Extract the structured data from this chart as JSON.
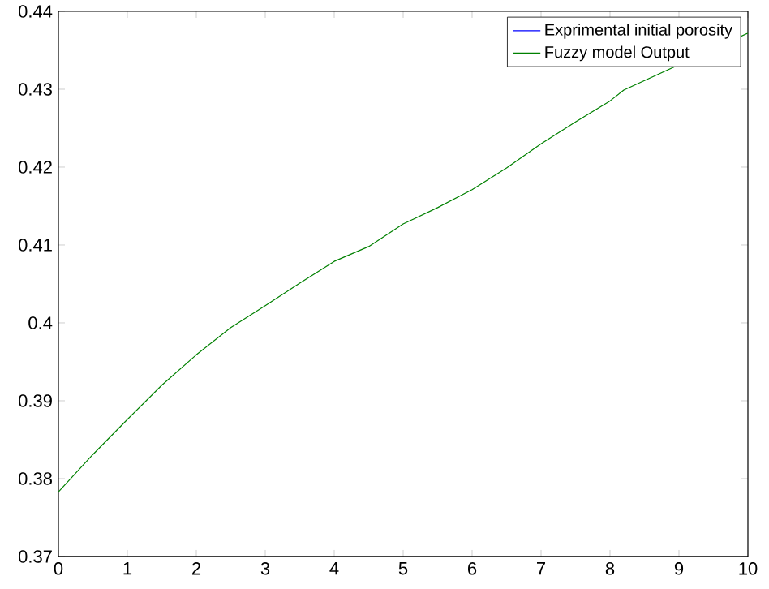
{
  "chart_data": {
    "type": "line",
    "x": [
      0,
      0.5,
      1,
      1.5,
      2,
      2.5,
      3,
      3.5,
      4,
      4.5,
      5,
      5.5,
      6,
      6.5,
      7,
      7.5,
      8,
      8.2,
      10
    ],
    "series": [
      {
        "name": "Exprimental initial porosity",
        "color": "#0000ff",
        "values": [
          null,
          null,
          null,
          null,
          null,
          null,
          null,
          null,
          null,
          null,
          null,
          null,
          null,
          null,
          null,
          null,
          null,
          null,
          null
        ]
      },
      {
        "name": "Fuzzy model Output",
        "color": "#008000",
        "values": [
          0.3783,
          0.3831,
          0.3876,
          0.392,
          0.3959,
          0.3994,
          0.4022,
          0.4051,
          0.4079,
          0.4098,
          0.4127,
          0.4148,
          0.4171,
          0.4199,
          0.423,
          0.4258,
          0.4285,
          0.4299,
          0.4372
        ]
      }
    ],
    "xlim": [
      0,
      10
    ],
    "ylim": [
      0.37,
      0.44
    ],
    "xticks": [
      0,
      1,
      2,
      3,
      4,
      5,
      6,
      7,
      8,
      9,
      10
    ],
    "yticks": [
      0.37,
      0.38,
      0.39,
      0.4,
      0.41,
      0.42,
      0.43,
      0.44
    ],
    "legend": "top right",
    "grid": false,
    "marker": "none",
    "line_style": "solid"
  }
}
